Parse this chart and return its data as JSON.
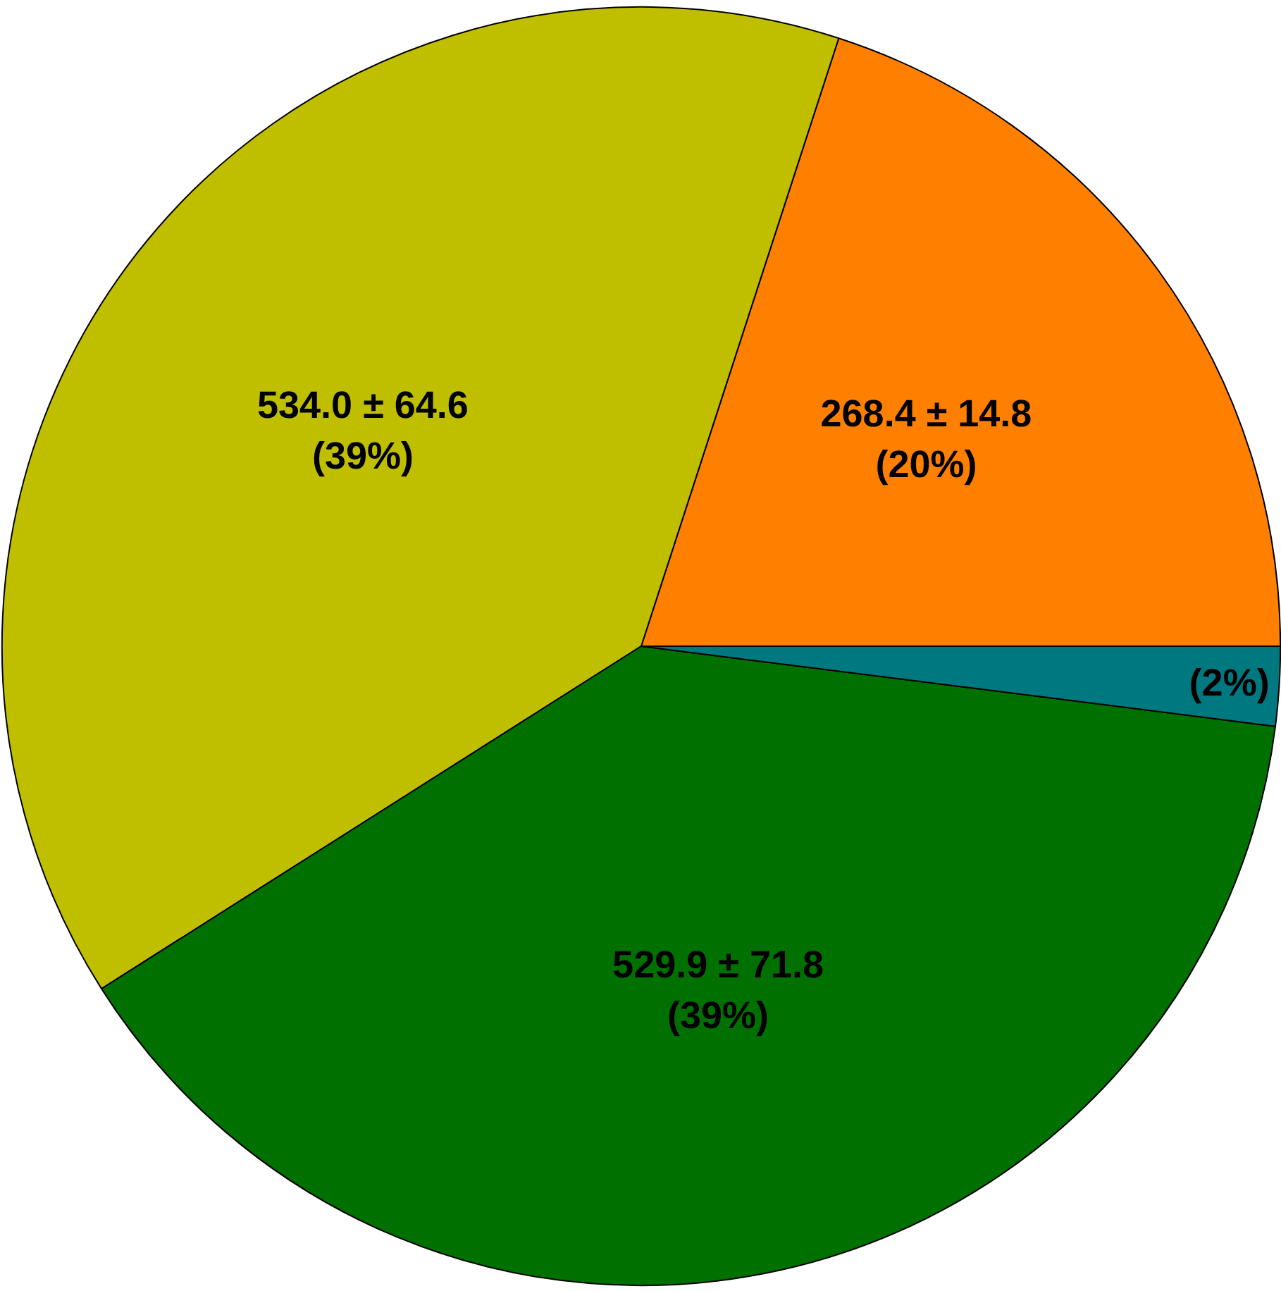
{
  "chart_data": {
    "type": "pie",
    "categories": [
      null,
      null,
      null,
      null
    ],
    "values": [
      20,
      39,
      39,
      2
    ],
    "colors": [
      "#ff8000",
      "#bfbf00",
      "#007000",
      "#00787f"
    ],
    "value_labels": [
      "268.4 ± 14.8\n(20%)",
      "534.0 ± 64.6\n(39%)",
      "529.9 ± 71.8\n(39%)",
      "(2%)"
    ]
  }
}
